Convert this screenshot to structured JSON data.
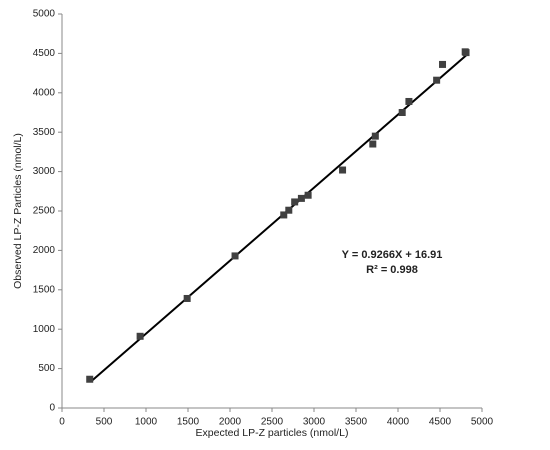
{
  "chart_data": {
    "type": "scatter",
    "x_label": "Expected LP-Z particles (nmol/L)",
    "y_label": "Observed LP-Z Particles (nmol/L)",
    "annotations": [
      "Y = 0.9266X + 16.91",
      "R² = 0.998"
    ],
    "x": [
      330,
      930,
      1490,
      2060,
      2640,
      2700,
      2770,
      2850,
      2930,
      3340,
      3700,
      3730,
      4050,
      4130,
      4460,
      4530,
      4800,
      4810
    ],
    "values": [
      365,
      910,
      1390,
      1930,
      2450,
      2510,
      2615,
      2660,
      2700,
      3020,
      3350,
      3450,
      3750,
      3890,
      4160,
      4360,
      4520,
      4510
    ],
    "color": "#404040",
    "trendline": {
      "x": [
        350,
        4820
      ],
      "values": [
        341,
        4483
      ],
      "color": "#000000"
    },
    "xlim": [
      0,
      5000
    ],
    "xticks": [
      0,
      500,
      1000,
      1500,
      2000,
      2500,
      3000,
      3500,
      4000,
      4500,
      5000
    ],
    "ylim": [
      0,
      5000
    ],
    "yticks": [
      0,
      500,
      1000,
      1500,
      2000,
      2500,
      3000,
      3500,
      4000,
      4500,
      5000
    ],
    "grid": false
  }
}
